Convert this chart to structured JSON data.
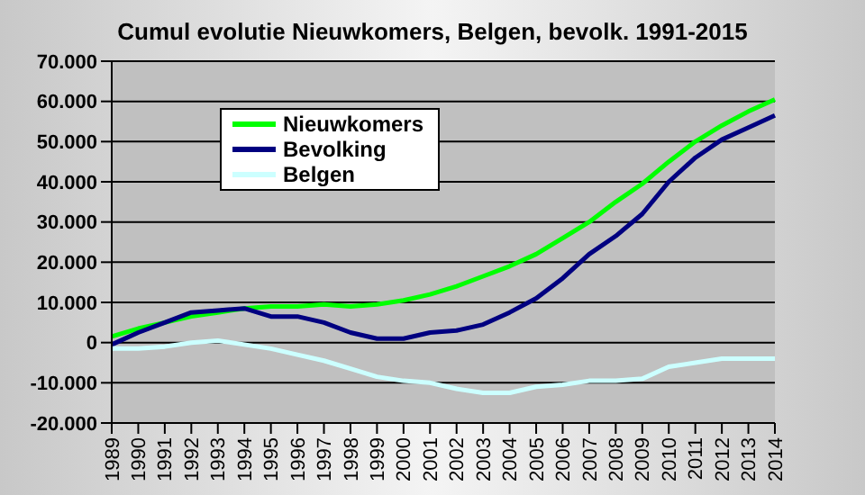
{
  "chart_data": {
    "type": "line",
    "title": "Cumul evolutie Nieuwkomers, Belgen, bevolk. 1991-2015",
    "categories": [
      "1989",
      "1990",
      "1991",
      "1992",
      "1993",
      "1994",
      "1995",
      "1996",
      "1997",
      "1998",
      "1999",
      "2000",
      "2001",
      "2002",
      "2003",
      "2004",
      "2005",
      "2006",
      "2007",
      "2008",
      "2009",
      "2010",
      "2011",
      "2012",
      "2013",
      "2014"
    ],
    "series": [
      {
        "name": "Nieuwkomers",
        "color": "#00ff00",
        "values": [
          1500,
          3500,
          5000,
          6500,
          7500,
          8500,
          9000,
          9000,
          9500,
          9000,
          9500,
          10500,
          12000,
          14000,
          16500,
          19000,
          22000,
          26000,
          30000,
          35000,
          39500,
          45000,
          50000,
          54000,
          57500,
          60500
        ]
      },
      {
        "name": "Bevolking",
        "color": "#000080",
        "values": [
          -500,
          2500,
          5000,
          7500,
          8000,
          8500,
          6500,
          6500,
          5000,
          2500,
          1000,
          1000,
          2500,
          3000,
          4500,
          7500,
          11000,
          16000,
          22000,
          26500,
          32000,
          40000,
          46000,
          50500,
          53500,
          56500
        ]
      },
      {
        "name": "Belgen",
        "color": "#ccffff",
        "values": [
          -1500,
          -1500,
          -1000,
          0,
          500,
          -500,
          -1500,
          -3000,
          -4500,
          -6500,
          -8500,
          -9500,
          -10000,
          -11500,
          -12500,
          -12500,
          -11000,
          -10500,
          -9500,
          -9500,
          -9000,
          -6000,
          -5000,
          -4000,
          -4000,
          -4000
        ]
      }
    ],
    "ylim": [
      -20000,
      70000
    ],
    "yticks": [
      {
        "value": -20000,
        "label": "-20.000"
      },
      {
        "value": -10000,
        "label": "-10.000"
      },
      {
        "value": 0,
        "label": "0"
      },
      {
        "value": 10000,
        "label": "10.000"
      },
      {
        "value": 20000,
        "label": "20.000"
      },
      {
        "value": 30000,
        "label": "30.000"
      },
      {
        "value": 40000,
        "label": "40.000"
      },
      {
        "value": 50000,
        "label": "50.000"
      },
      {
        "value": 60000,
        "label": "60.000"
      },
      {
        "value": 70000,
        "label": "70.000"
      }
    ],
    "grid": "y",
    "legend": "top left",
    "marker": "none",
    "line_style": "solid"
  }
}
